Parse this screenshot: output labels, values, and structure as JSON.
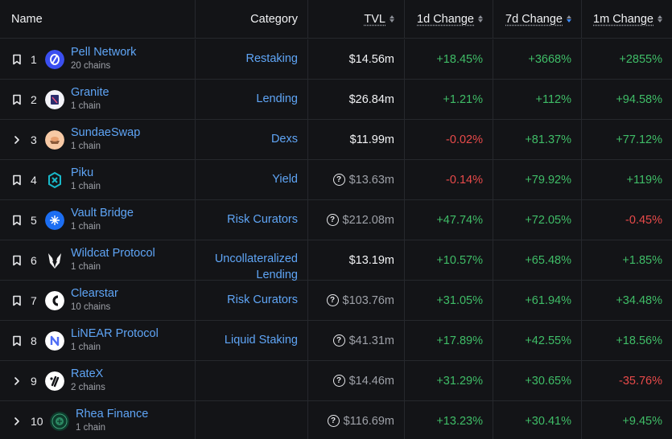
{
  "header": {
    "name": "Name",
    "category": "Category",
    "tvl": "TVL",
    "change_1d": "1d Change",
    "change_7d": "7d Change",
    "change_1m": "1m Change"
  },
  "rows": [
    {
      "rank": "1",
      "lead": "bookmark",
      "name": "Pell Network",
      "chains": "20 chains",
      "category": "Restaking",
      "category2": "",
      "tvl": "$14.56m",
      "tvl_uncertain": false,
      "d1": "+18.45%",
      "d7": "+3668%",
      "m1": "+2855%",
      "d1_neg": false,
      "d7_neg": false,
      "m1_neg": false,
      "logo_icon": "pell-network-logo-icon",
      "logo_color": "#3b4ff0"
    },
    {
      "rank": "2",
      "lead": "bookmark",
      "name": "Granite",
      "chains": "1 chain",
      "category": "Lending",
      "category2": "",
      "tvl": "$26.84m",
      "tvl_uncertain": false,
      "d1": "+1.21%",
      "d7": "+112%",
      "m1": "+94.58%",
      "d1_neg": false,
      "d7_neg": false,
      "m1_neg": false,
      "logo_icon": "granite-logo-icon",
      "logo_color": "#f3f3f8"
    },
    {
      "rank": "3",
      "lead": "chevron",
      "name": "SundaeSwap",
      "chains": "1 chain",
      "category": "Dexs",
      "category2": "",
      "tvl": "$11.99m",
      "tvl_uncertain": false,
      "d1": "-0.02%",
      "d7": "+81.37%",
      "m1": "+77.12%",
      "d1_neg": true,
      "d7_neg": false,
      "m1_neg": false,
      "logo_icon": "sundaeswap-logo-icon",
      "logo_color": "#f7c9a5"
    },
    {
      "rank": "4",
      "lead": "bookmark",
      "name": "Piku",
      "chains": "1 chain",
      "category": "Yield",
      "category2": "",
      "tvl": "$13.63m",
      "tvl_uncertain": true,
      "d1": "-0.14%",
      "d7": "+79.92%",
      "m1": "+119%",
      "d1_neg": true,
      "d7_neg": false,
      "m1_neg": false,
      "logo_icon": "piku-logo-icon",
      "logo_color": "#19b8c9"
    },
    {
      "rank": "5",
      "lead": "bookmark",
      "name": "Vault Bridge",
      "chains": "1 chain",
      "category": "Risk Curators",
      "category2": "",
      "tvl": "$212.08m",
      "tvl_uncertain": true,
      "d1": "+47.74%",
      "d7": "+72.05%",
      "m1": "-0.45%",
      "d1_neg": false,
      "d7_neg": false,
      "m1_neg": true,
      "logo_icon": "vault-bridge-logo-icon",
      "logo_color": "#1c6ef2"
    },
    {
      "rank": "6",
      "lead": "bookmark",
      "name": "Wildcat Protocol",
      "chains": "1 chain",
      "category": "Uncollateralized",
      "category2": "Lending",
      "tvl": "$13.19m",
      "tvl_uncertain": false,
      "d1": "+10.57%",
      "d7": "+65.48%",
      "m1": "+1.85%",
      "d1_neg": false,
      "d7_neg": false,
      "m1_neg": false,
      "logo_icon": "wildcat-protocol-logo-icon",
      "logo_color": "#131417"
    },
    {
      "rank": "7",
      "lead": "bookmark",
      "name": "Clearstar",
      "chains": "10 chains",
      "category": "Risk Curators",
      "category2": "",
      "tvl": "$103.76m",
      "tvl_uncertain": true,
      "d1": "+31.05%",
      "d7": "+61.94%",
      "m1": "+34.48%",
      "d1_neg": false,
      "d7_neg": false,
      "m1_neg": false,
      "logo_icon": "clearstar-logo-icon",
      "logo_color": "#ffffff"
    },
    {
      "rank": "8",
      "lead": "bookmark",
      "name": "LiNEAR Protocol",
      "chains": "1 chain",
      "category": "Liquid Staking",
      "category2": "",
      "tvl": "$41.31m",
      "tvl_uncertain": true,
      "d1": "+17.89%",
      "d7": "+42.55%",
      "m1": "+18.56%",
      "d1_neg": false,
      "d7_neg": false,
      "m1_neg": false,
      "logo_icon": "linear-protocol-logo-icon",
      "logo_color": "#ffffff"
    },
    {
      "rank": "9",
      "lead": "chevron",
      "name": "RateX",
      "chains": "2 chains",
      "category": "",
      "category2": "",
      "tvl": "$14.46m",
      "tvl_uncertain": true,
      "d1": "+31.29%",
      "d7": "+30.65%",
      "m1": "-35.76%",
      "d1_neg": false,
      "d7_neg": false,
      "m1_neg": true,
      "logo_icon": "ratex-logo-icon",
      "logo_color": "#ffffff"
    },
    {
      "rank": "10",
      "lead": "chevron",
      "name": "Rhea Finance",
      "chains": "1 chain",
      "category": "",
      "category2": "",
      "tvl": "$116.69m",
      "tvl_uncertain": true,
      "d1": "+13.23%",
      "d7": "+30.41%",
      "m1": "+9.45%",
      "d1_neg": false,
      "d7_neg": false,
      "m1_neg": false,
      "logo_icon": "rhea-finance-logo-icon",
      "logo_color": "#0e3b2c"
    }
  ],
  "colors": {
    "link": "#5fa5f6",
    "positive": "#3fbd67",
    "negative": "#e84a4a",
    "background": "#131417",
    "sort_active": "#3d8bfd"
  }
}
